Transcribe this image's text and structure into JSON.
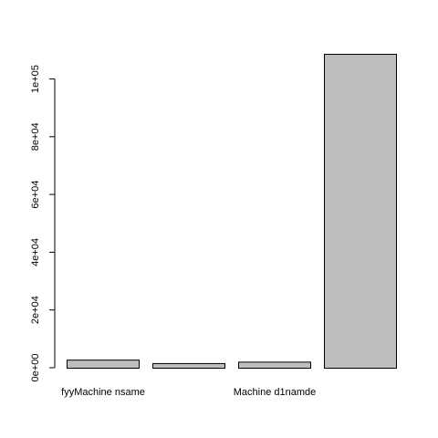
{
  "chart_data": {
    "type": "bar",
    "categories": [
      "fyyMachine nsame",
      "",
      "Machine d1namde",
      ""
    ],
    "values": [
      2800,
      1600,
      2100,
      108700
    ],
    "yticks": [
      {
        "value": 0,
        "label": "0e+00"
      },
      {
        "value": 20000,
        "label": "2e+04"
      },
      {
        "value": 40000,
        "label": "4e+04"
      },
      {
        "value": 60000,
        "label": "6e+04"
      },
      {
        "value": 80000,
        "label": "8e+04"
      },
      {
        "value": 100000,
        "label": "1e+05"
      }
    ],
    "ylim": [
      0,
      108700
    ],
    "bar_color": "#bebebe",
    "bar_border_color": "#000000",
    "grid": false,
    "legend": "none"
  }
}
